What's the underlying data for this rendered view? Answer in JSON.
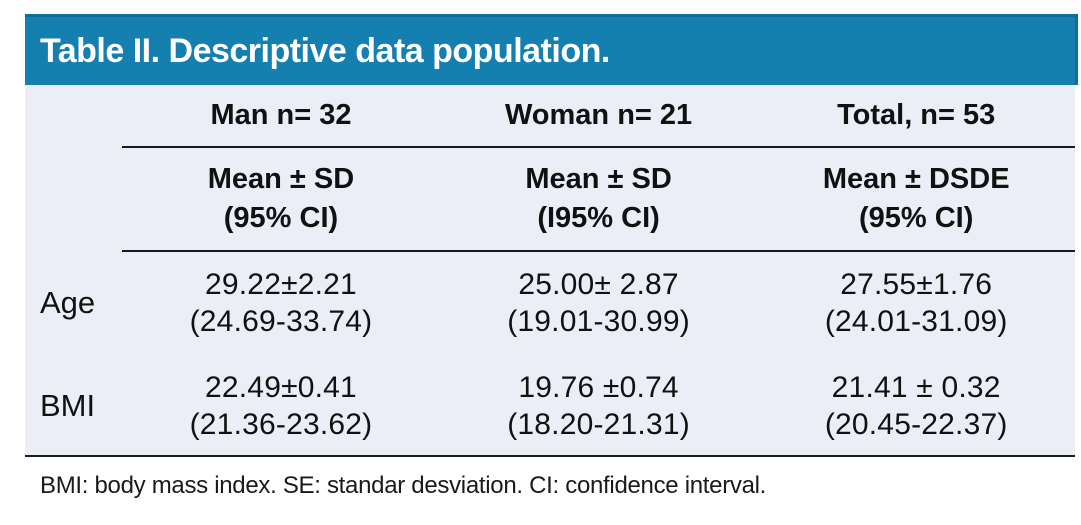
{
  "title": "Table II. Descriptive data population.",
  "table": {
    "column_headers": [
      "Man n= 32",
      "Woman n= 21",
      "Total, n= 53"
    ],
    "subheaders": [
      {
        "line1": "Mean ± SD",
        "line2": "(95% CI)"
      },
      {
        "line1": "Mean ± SD",
        "line2": "(I95% CI)"
      },
      {
        "line1": "Mean ± DSDE",
        "line2": "(95% CI)"
      }
    ],
    "rows": [
      {
        "label": "Age",
        "cells": [
          {
            "mean": "29.22±2.21",
            "ci": "(24.69-33.74)"
          },
          {
            "mean": "25.00± 2.87",
            "ci": "(19.01-30.99)"
          },
          {
            "mean": "27.55±1.76",
            "ci": "(24.01-31.09)"
          }
        ]
      },
      {
        "label": "BMI",
        "cells": [
          {
            "mean": "22.49±0.41",
            "ci": "(21.36-23.62)"
          },
          {
            "mean": "19.76 ±0.74",
            "ci": "(18.20-21.31)"
          },
          {
            "mean": "21.41 ± 0.32",
            "ci": "(20.45-22.37)"
          }
        ]
      }
    ]
  },
  "footnote": "BMI: body mass index. SE: standar desviation. CI: confidence interval.",
  "colors": {
    "header_bar": "#157FB0",
    "header_bar_edge": "#0F6E99",
    "table_bg": "#EBEEF6",
    "rule": "#1A1A1A",
    "text": "#111111"
  }
}
